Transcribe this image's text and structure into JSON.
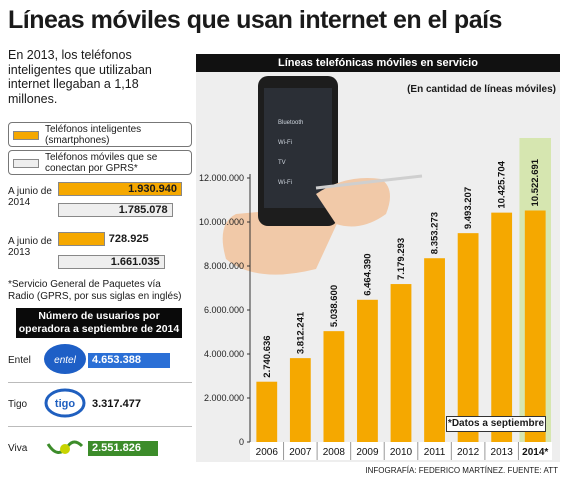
{
  "title": "Líneas móviles que usan internet en el país",
  "intro": "En 2013, los teléfonos inteligentes que utilizaban internet llegaban a 1,18 millones.",
  "legend": {
    "smartphones": "Teléfonos inteligentes (smartphones)",
    "gprs": "Teléfonos móviles que se conectan por GPRS*"
  },
  "comparison": [
    {
      "label": "A junio de 2014",
      "smartphones": "1.930.940",
      "gprs": "1.785.078",
      "smartphones_value": 1930940,
      "gprs_value": 1785078
    },
    {
      "label": "A junio de 2013",
      "smartphones": "728.925",
      "gprs": "1.661.035",
      "smartphones_value": 728925,
      "gprs_value": 1661035
    }
  ],
  "footnote_gprs": "*Servicio General de Paquetes vía Radio (GPRS, por sus siglas en inglés)",
  "operators": {
    "heading": "Número de usuarios por operadora a septiembre de 2014",
    "items": [
      {
        "name": "Entel",
        "value": "4.653.388",
        "amount": 4653388,
        "color": "#2a6fd6",
        "logo": "entel"
      },
      {
        "name": "Tigo",
        "value": "3.317.477",
        "amount": 3317477,
        "color": "#1f5fbf",
        "logo": "tigo"
      },
      {
        "name": "Viva",
        "value": "2.551.826",
        "amount": 2551826,
        "color": "#3c8c2a",
        "logo": "viva"
      }
    ]
  },
  "chart_header": "Líneas telefónicas móviles en servicio",
  "unit_note": "(En cantidad de líneas móviles)",
  "chart_note": "*Datos a septiembre",
  "credit": "INFOGRAFÍA: FEDERICO MARTÍNEZ. FUENTE: ATT",
  "colors": {
    "bar": "#f5a800",
    "highlight": "#d6e6b0",
    "dark": "#111111"
  },
  "chart_data": {
    "type": "bar",
    "title": "Líneas telefónicas móviles en servicio",
    "ylabel": "(En cantidad de líneas móviles)",
    "categories": [
      "2006",
      "2007",
      "2008",
      "2009",
      "2010",
      "2011",
      "2012",
      "2013",
      "2014*"
    ],
    "values": [
      2740636,
      3812241,
      5038600,
      6464390,
      7179293,
      8353273,
      9493207,
      10425704,
      10522691
    ],
    "value_labels": [
      "2.740.636",
      "3.812.241",
      "5.038.600",
      "6.464.390",
      "7.179.293",
      "8.353.273",
      "9.493.207",
      "10.425.704",
      "10.522.691"
    ],
    "ylim": [
      0,
      12000000
    ],
    "yticks": [
      0,
      2000000,
      4000000,
      6000000,
      8000000,
      10000000,
      12000000
    ],
    "ytick_labels": [
      "0",
      "2.000.000",
      "4.000.000",
      "6.000.000",
      "8.000.000",
      "10.000.000",
      "12.000.000"
    ],
    "highlight_category": "2014*",
    "grid": false
  },
  "phone_screen": {
    "items": [
      "Bluetooth",
      "Wi-Fi",
      "TV",
      "Wi-Fi"
    ]
  }
}
